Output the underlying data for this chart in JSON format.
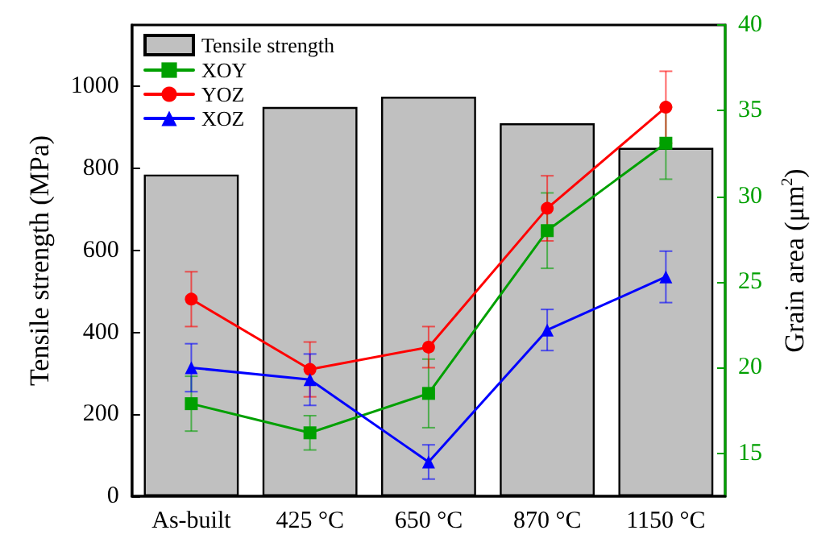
{
  "chart_data": {
    "type": "bar",
    "categories": [
      "As-built",
      "425 °C",
      "650 °C",
      "870 °C",
      "1150 °C"
    ],
    "ylabel": "Tensile strength (MPa)",
    "y2label": "Grain area (μm$^{2}$)",
    "ylim": [
      0,
      1150
    ],
    "yticks": [
      0,
      200,
      400,
      600,
      800,
      1000
    ],
    "y2lim": [
      12.5,
      40
    ],
    "y2ticks": [
      15,
      20,
      25,
      30,
      35,
      40
    ],
    "legend": "top left",
    "grid": false,
    "series": [
      {
        "name": "Tensile strength",
        "color": "#c0c0c0",
        "values": [
          785,
          950,
          975,
          910,
          850
        ]
      },
      {
        "name": "XOY",
        "type": "line",
        "axis": "y2",
        "marker": "square",
        "color": "#00a000",
        "values": [
          17.9,
          16.2,
          18.5,
          28.0,
          33.1
        ],
        "errors": [
          1.6,
          1.0,
          2.0,
          2.2,
          2.1
        ]
      },
      {
        "name": "YOZ",
        "type": "line",
        "axis": "y2",
        "marker": "circle",
        "color": "#ff0000",
        "values": [
          24.0,
          19.9,
          21.2,
          29.3,
          35.2
        ],
        "errors": [
          1.6,
          1.6,
          1.2,
          1.9,
          2.1
        ]
      },
      {
        "name": "XOZ",
        "type": "line",
        "axis": "y2",
        "marker": "triangle",
        "color": "#0000ff",
        "values": [
          20.0,
          19.3,
          14.5,
          22.2,
          25.3
        ],
        "errors": [
          1.4,
          1.5,
          1.0,
          1.2,
          1.5
        ]
      }
    ]
  }
}
